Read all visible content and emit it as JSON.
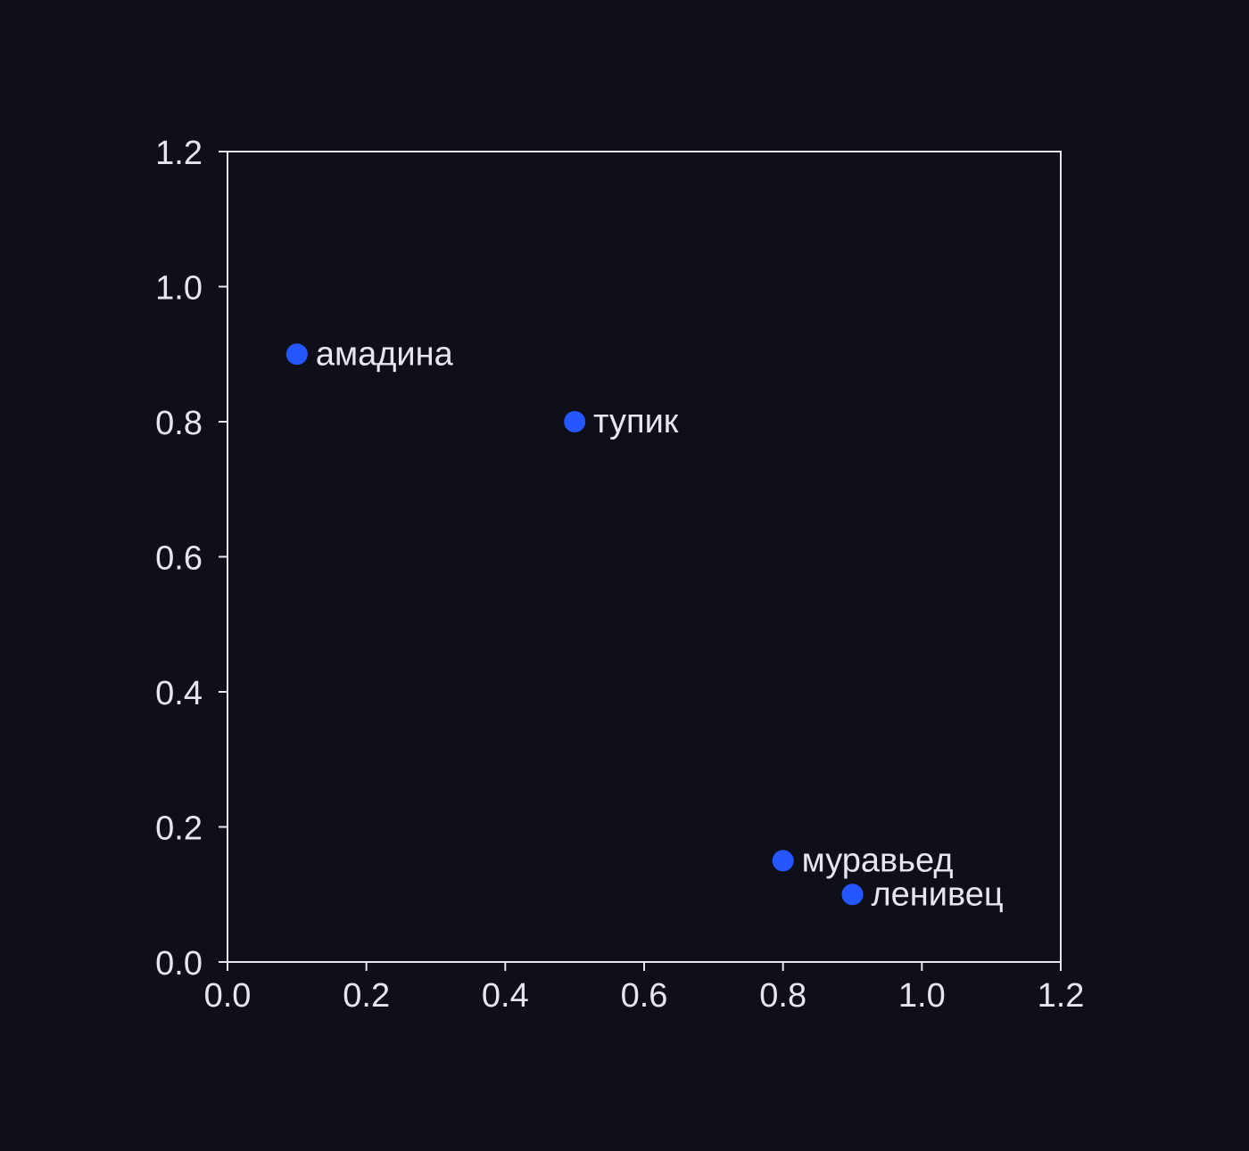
{
  "colors": {
    "background": "#0e0f18",
    "axis": "#e6e6ee",
    "text": "#e6e6ee",
    "point": "#2457ff"
  },
  "chart_data": {
    "type": "scatter",
    "title": "",
    "xlabel": "",
    "ylabel": "",
    "xlim": [
      0.0,
      1.2
    ],
    "ylim": [
      0.0,
      1.2
    ],
    "xticks": [
      "0.0",
      "0.2",
      "0.4",
      "0.6",
      "0.8",
      "1.0",
      "1.2"
    ],
    "yticks": [
      "0.0",
      "0.2",
      "0.4",
      "0.6",
      "0.8",
      "1.0",
      "1.2"
    ],
    "grid": false,
    "points": [
      {
        "label": "амадина",
        "x": 0.1,
        "y": 0.9
      },
      {
        "label": "тупик",
        "x": 0.5,
        "y": 0.8
      },
      {
        "label": "муравьед",
        "x": 0.8,
        "y": 0.15
      },
      {
        "label": "ленивец",
        "x": 0.9,
        "y": 0.1
      }
    ]
  }
}
